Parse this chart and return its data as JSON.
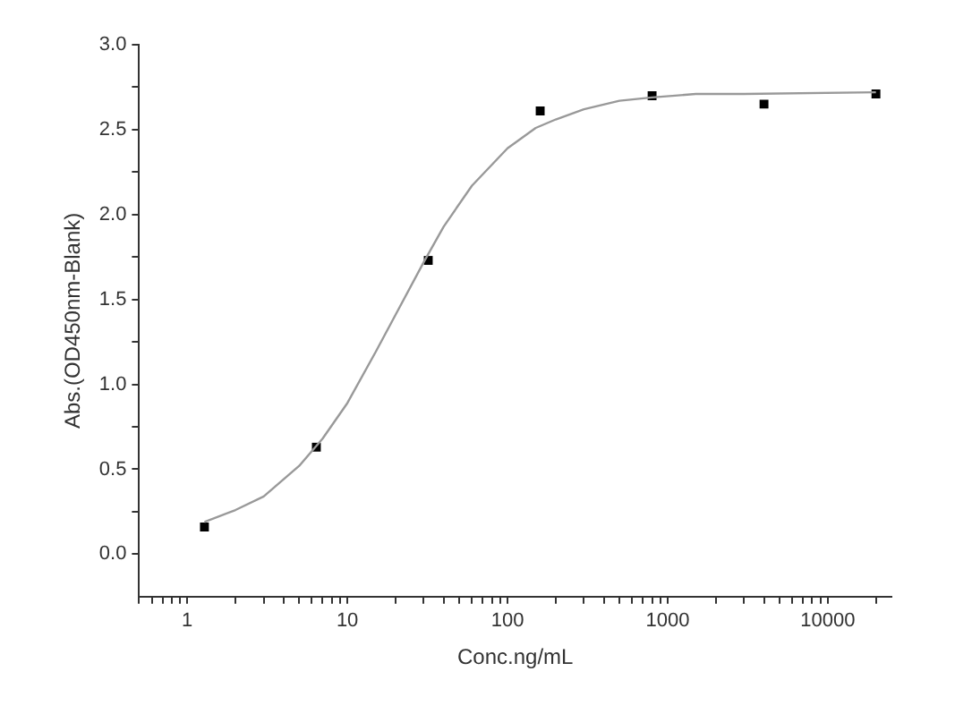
{
  "chart_data": {
    "type": "scatter",
    "xlabel": "Conc.ng/mL",
    "ylabel": "Abs.(OD450nm-Blank)",
    "log": "x",
    "grid": false,
    "legend": false,
    "xlim": [
      0.5,
      25000
    ],
    "ylim": [
      -0.25,
      3.0
    ],
    "xticks": [
      {
        "value": 0.5,
        "label": null
      },
      {
        "value": 0.6,
        "label": null
      },
      {
        "value": 0.7,
        "label": null
      },
      {
        "value": 0.8,
        "label": null
      },
      {
        "value": 0.9,
        "label": null
      },
      1,
      {
        "value": 2,
        "label": null
      },
      {
        "value": 3,
        "label": null
      },
      {
        "value": 4,
        "label": null
      },
      {
        "value": 5,
        "label": null
      },
      {
        "value": 6,
        "label": null
      },
      {
        "value": 7,
        "label": null
      },
      {
        "value": 8,
        "label": null
      },
      {
        "value": 9,
        "label": null
      },
      10,
      {
        "value": 20,
        "label": null
      },
      {
        "value": 30,
        "label": null
      },
      {
        "value": 40,
        "label": null
      },
      {
        "value": 50,
        "label": null
      },
      {
        "value": 60,
        "label": null
      },
      {
        "value": 70,
        "label": null
      },
      {
        "value": 80,
        "label": null
      },
      {
        "value": 90,
        "label": null
      },
      100,
      {
        "value": 200,
        "label": null
      },
      {
        "value": 300,
        "label": null
      },
      {
        "value": 400,
        "label": null
      },
      {
        "value": 500,
        "label": null
      },
      {
        "value": 600,
        "label": null
      },
      {
        "value": 700,
        "label": null
      },
      {
        "value": 800,
        "label": null
      },
      {
        "value": 900,
        "label": null
      },
      1000,
      {
        "value": 2000,
        "label": null
      },
      {
        "value": 3000,
        "label": null
      },
      {
        "value": 4000,
        "label": null
      },
      {
        "value": 5000,
        "label": null
      },
      {
        "value": 6000,
        "label": null
      },
      {
        "value": 7000,
        "label": null
      },
      {
        "value": 8000,
        "label": null
      },
      {
        "value": 9000,
        "label": null
      },
      10000,
      {
        "value": 20000,
        "label": null
      }
    ],
    "yticks": [
      {
        "value": 0,
        "label": "0.0"
      },
      {
        "value": 0.25,
        "label": null
      },
      0.5,
      {
        "value": 0.75,
        "label": null
      },
      {
        "value": 1,
        "label": "1.0"
      },
      {
        "value": 1.25,
        "label": null
      },
      1.5,
      {
        "value": 1.75,
        "label": null
      },
      {
        "value": 2,
        "label": "2.0"
      },
      {
        "value": 2.25,
        "label": null
      },
      2.5,
      {
        "value": 2.75,
        "label": null
      },
      {
        "value": 3,
        "label": "3.0"
      }
    ],
    "series": [
      {
        "type": "line",
        "marker": "none",
        "line_style": "solid",
        "color": "#999999",
        "x": [
          1.28,
          2,
          3,
          5,
          7,
          10,
          15,
          20,
          30,
          40,
          60,
          100,
          150,
          200,
          300,
          500,
          800,
          1500,
          3000,
          20000
        ],
        "values": [
          0.19,
          0.26,
          0.34,
          0.52,
          0.68,
          0.89,
          1.19,
          1.41,
          1.72,
          1.93,
          2.17,
          2.39,
          2.51,
          2.56,
          2.62,
          2.67,
          2.69,
          2.71,
          2.71,
          2.72
        ]
      },
      {
        "marker": "square",
        "color": "#000000",
        "x": [
          1.28,
          6.4,
          32,
          160,
          800,
          4000,
          20000
        ],
        "values": [
          0.16,
          0.63,
          1.73,
          2.61,
          2.7,
          2.65,
          2.71
        ]
      }
    ]
  }
}
